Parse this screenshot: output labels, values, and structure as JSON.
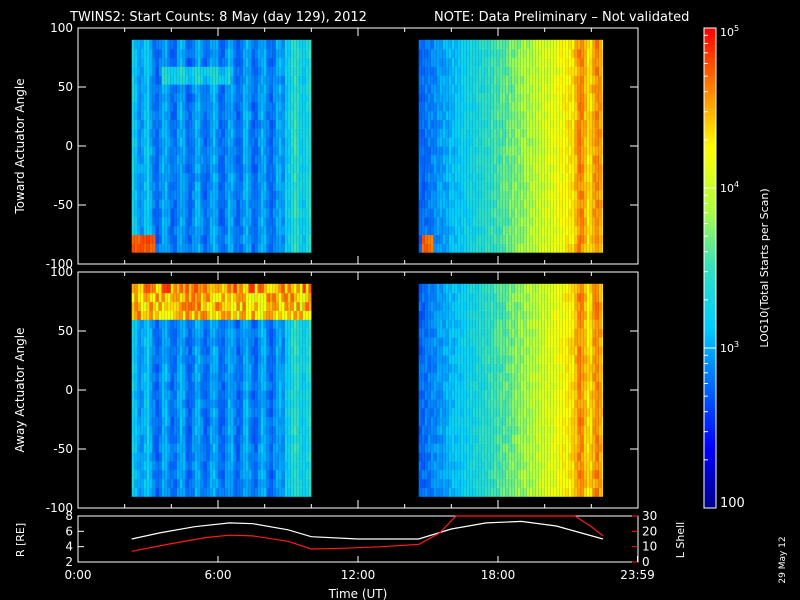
{
  "header": {
    "title": "TWINS2: Start Counts:  8 May (day 129), 2012",
    "note": "NOTE: Data Preliminary – Not validated",
    "note_color": "#ff1a1a"
  },
  "footer": {
    "date_stamp": "29 May 12"
  },
  "colorbar": {
    "label": "LOG10(Total Starts per Scan)",
    "tick_labels": [
      "10^5",
      "10^4",
      "10^3",
      "100"
    ],
    "range": [
      100,
      100000
    ],
    "scale": "log",
    "colors": [
      "#00008a",
      "#0000ff",
      "#0066ff",
      "#00ccff",
      "#33e0c0",
      "#b0ff40",
      "#ffff00",
      "#ff8000",
      "#ff0000"
    ]
  },
  "chart_data": [
    {
      "type": "heatmap",
      "ylabel": "Toward Actuator Angle",
      "ylim": [
        -100,
        100
      ],
      "y_ticks": [
        100,
        50,
        0,
        -50,
        -100
      ],
      "xlim": [
        0,
        24
      ],
      "data_windows_hours": [
        [
          2.3,
          10.0
        ],
        [
          14.6,
          22.5
        ]
      ],
      "angle_range": [
        -90,
        90
      ],
      "color_scale": "log",
      "grid": false
    },
    {
      "type": "heatmap",
      "ylabel": "Away Actuator Angle",
      "ylim": [
        -100,
        100
      ],
      "y_ticks": [
        100,
        50,
        0,
        -50,
        -100
      ],
      "xlim": [
        0,
        24
      ],
      "data_windows_hours": [
        [
          2.3,
          10.0
        ],
        [
          14.6,
          22.5
        ]
      ],
      "angle_range": [
        -90,
        90
      ],
      "color_scale": "log",
      "grid": false
    },
    {
      "type": "line",
      "xlabel": "Time (UT)",
      "x_tick_labels": [
        "0:00",
        "6:00",
        "12:00",
        "18:00",
        "23:59"
      ],
      "x_ticks_hours": [
        0,
        6,
        12,
        18,
        23.98
      ],
      "xlim": [
        0,
        24
      ],
      "ylabel_left": "R [RE]",
      "ylim_left": [
        2,
        8
      ],
      "y_ticks_left": [
        2,
        4,
        6,
        8
      ],
      "ylabel_right": "L Shell",
      "ylim_right": [
        0,
        30
      ],
      "y_ticks_right": [
        0,
        10,
        20,
        30
      ],
      "series": [
        {
          "axis": "left",
          "color": "#ffffff",
          "x": [
            2.3,
            3.5,
            5,
            6.5,
            7.5,
            9,
            10,
            12,
            14.6,
            16,
            17.5,
            19,
            20.5,
            22.5
          ],
          "y": [
            5.0,
            5.8,
            6.6,
            7.1,
            7.0,
            6.2,
            5.3,
            5.0,
            5.0,
            6.3,
            7.1,
            7.3,
            6.7,
            5.0
          ]
        },
        {
          "axis": "right",
          "color": "#ff1a1a",
          "x": [
            2.3,
            4,
            5.5,
            6.5,
            7.5,
            9,
            10,
            11.5,
            13,
            14.6,
            15.5,
            16.2,
            21.3,
            22,
            22.5
          ],
          "y": [
            7,
            12,
            16,
            17.5,
            17,
            13.5,
            8.5,
            9,
            10,
            11.5,
            19,
            31,
            31,
            23,
            17
          ]
        }
      ]
    }
  ]
}
